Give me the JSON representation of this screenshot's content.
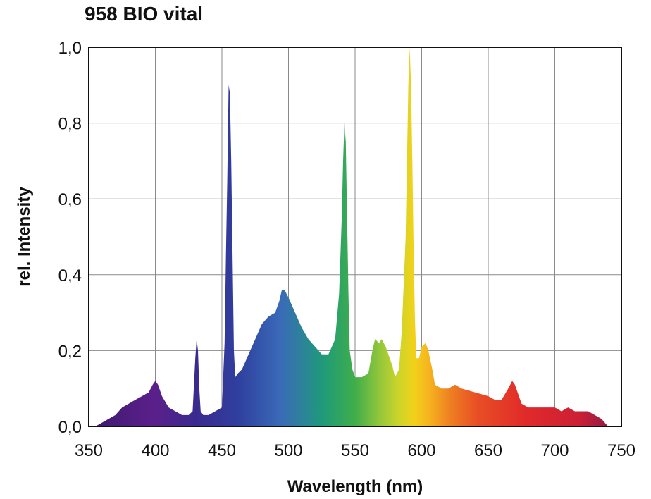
{
  "chart_data": {
    "type": "area",
    "title": "958 BIO vital",
    "xlabel": "Wavelength (nm)",
    "ylabel": "rel. Intensity",
    "xlim": [
      350,
      750
    ],
    "ylim": [
      0,
      1.0
    ],
    "xticks": [
      350,
      400,
      450,
      500,
      550,
      600,
      650,
      700,
      750
    ],
    "xtick_labels": [
      "350",
      "400",
      "450",
      "500",
      "550",
      "600",
      "650",
      "700",
      "750"
    ],
    "yticks": [
      0,
      0.2,
      0.4,
      0.6,
      0.8,
      1.0
    ],
    "ytick_labels": [
      "0,0",
      "0,2",
      "0,4",
      "0,6",
      "0,8",
      "1,0"
    ],
    "grid": true,
    "fill": "visible-spectrum gradient",
    "series": [
      {
        "x": [
          350,
          355,
          360,
          365,
          370,
          375,
          380,
          385,
          390,
          395,
          398,
          400,
          402,
          405,
          410,
          415,
          420,
          425,
          428,
          430,
          431,
          432,
          433,
          434,
          436,
          440,
          445,
          450,
          452,
          453,
          454,
          455,
          456,
          457,
          458,
          459,
          460,
          462,
          465,
          470,
          475,
          480,
          485,
          490,
          493,
          495,
          497,
          500,
          505,
          510,
          515,
          520,
          525,
          530,
          535,
          538,
          540,
          541,
          542,
          543,
          544,
          545,
          546,
          548,
          550,
          555,
          560,
          563,
          565,
          568,
          570,
          573,
          575,
          578,
          580,
          583,
          585,
          588,
          590,
          591,
          592,
          593,
          594,
          595,
          596,
          598,
          600,
          603,
          605,
          608,
          610,
          615,
          620,
          625,
          630,
          640,
          650,
          655,
          660,
          665,
          668,
          670,
          675,
          680,
          690,
          700,
          705,
          710,
          715,
          720,
          725,
          730,
          735,
          740
        ],
        "y": [
          0.0,
          0.0,
          0.01,
          0.02,
          0.03,
          0.05,
          0.06,
          0.07,
          0.08,
          0.09,
          0.11,
          0.12,
          0.11,
          0.08,
          0.05,
          0.04,
          0.03,
          0.03,
          0.04,
          0.18,
          0.23,
          0.2,
          0.1,
          0.04,
          0.03,
          0.03,
          0.04,
          0.05,
          0.22,
          0.45,
          0.65,
          0.9,
          0.88,
          0.7,
          0.45,
          0.2,
          0.13,
          0.14,
          0.15,
          0.19,
          0.23,
          0.27,
          0.29,
          0.3,
          0.33,
          0.36,
          0.36,
          0.34,
          0.3,
          0.26,
          0.23,
          0.21,
          0.19,
          0.19,
          0.23,
          0.35,
          0.55,
          0.7,
          0.8,
          0.75,
          0.55,
          0.35,
          0.2,
          0.15,
          0.13,
          0.13,
          0.14,
          0.2,
          0.23,
          0.22,
          0.23,
          0.21,
          0.19,
          0.16,
          0.13,
          0.15,
          0.25,
          0.5,
          0.9,
          1.0,
          0.9,
          0.7,
          0.45,
          0.28,
          0.18,
          0.18,
          0.21,
          0.22,
          0.2,
          0.15,
          0.11,
          0.1,
          0.1,
          0.11,
          0.1,
          0.09,
          0.08,
          0.07,
          0.07,
          0.1,
          0.12,
          0.11,
          0.06,
          0.05,
          0.05,
          0.05,
          0.04,
          0.05,
          0.04,
          0.04,
          0.04,
          0.03,
          0.02,
          0.0
        ]
      }
    ]
  }
}
